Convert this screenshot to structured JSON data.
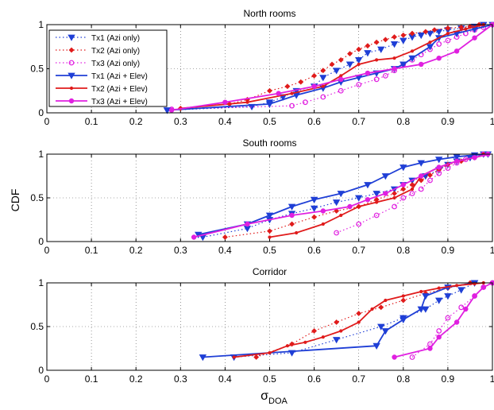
{
  "figure": {
    "shared_ylabel": "CDF",
    "shared_xlabel_main": "σ",
    "shared_xlabel_sub": "DOA"
  },
  "legend": {
    "placement": "top-left of first panel",
    "entries": [
      {
        "label": "Tx1 (Azi only)",
        "color": "#1f3fd6",
        "dash": "dotted",
        "marker": "triangle-down"
      },
      {
        "label": "Tx2 (Azi only)",
        "color": "#e01b1b",
        "dash": "dotted",
        "marker": "diamond"
      },
      {
        "label": "Tx3 (Azi only)",
        "color": "#e020e0",
        "dash": "dotted",
        "marker": "circle-open"
      },
      {
        "label": "Tx1 (Azi + Elev)",
        "color": "#1f3fd6",
        "dash": "solid",
        "marker": "triangle-down"
      },
      {
        "label": "Tx2 (Azi + Elev)",
        "color": "#e01b1b",
        "dash": "solid",
        "marker": "dot"
      },
      {
        "label": "Tx3 (Azi + Elev)",
        "color": "#e020e0",
        "dash": "solid",
        "marker": "circle-filled"
      }
    ]
  },
  "chart_data": [
    {
      "type": "line",
      "title": "North rooms",
      "xlabel": "",
      "ylabel": "",
      "xlim": [
        0,
        1
      ],
      "ylim": [
        0,
        1
      ],
      "xticks": [
        "0",
        "0.1",
        "0.2",
        "0.3",
        "0.4",
        "0.5",
        "0.6",
        "0.7",
        "0.8",
        "0.9",
        "1"
      ],
      "yticks": [
        "0",
        "0.5",
        "1"
      ],
      "grid": true,
      "series": [
        {
          "name": "Tx1 (Azi only)",
          "x": [
            0.27,
            0.46,
            0.5,
            0.53,
            0.56,
            0.6,
            0.62,
            0.65,
            0.68,
            0.7,
            0.72,
            0.75,
            0.78,
            0.8,
            0.82,
            0.84,
            0.86,
            0.88,
            0.9,
            0.93,
            0.96,
            0.98
          ],
          "y": [
            0.03,
            0.07,
            0.12,
            0.18,
            0.25,
            0.3,
            0.4,
            0.48,
            0.55,
            0.6,
            0.68,
            0.72,
            0.78,
            0.82,
            0.86,
            0.88,
            0.9,
            0.92,
            0.94,
            0.96,
            0.98,
            1.0
          ]
        },
        {
          "name": "Tx2 (Azi only)",
          "x": [
            0.3,
            0.41,
            0.45,
            0.5,
            0.54,
            0.57,
            0.6,
            0.62,
            0.64,
            0.66,
            0.68,
            0.7,
            0.72,
            0.74,
            0.76,
            0.78,
            0.8,
            0.82,
            0.85,
            0.87,
            0.9,
            0.93,
            0.95,
            0.97
          ],
          "y": [
            0.05,
            0.1,
            0.15,
            0.25,
            0.3,
            0.35,
            0.42,
            0.48,
            0.55,
            0.6,
            0.67,
            0.72,
            0.76,
            0.8,
            0.83,
            0.86,
            0.88,
            0.9,
            0.92,
            0.94,
            0.96,
            0.97,
            0.98,
            1.0
          ]
        },
        {
          "name": "Tx3 (Azi only)",
          "x": [
            0.28,
            0.55,
            0.58,
            0.62,
            0.66,
            0.7,
            0.74,
            0.76,
            0.78,
            0.8,
            0.82,
            0.84,
            0.86,
            0.88,
            0.9,
            0.92,
            0.94,
            0.96,
            0.98,
            1.0
          ],
          "y": [
            0.04,
            0.08,
            0.12,
            0.18,
            0.25,
            0.32,
            0.38,
            0.42,
            0.48,
            0.55,
            0.6,
            0.66,
            0.72,
            0.78,
            0.82,
            0.86,
            0.9,
            0.94,
            0.97,
            1.0
          ]
        },
        {
          "name": "Tx1 (Azi + Elev)",
          "x": [
            0.27,
            0.5,
            0.56,
            0.62,
            0.66,
            0.7,
            0.74,
            0.78,
            0.8,
            0.82,
            0.86,
            0.88,
            0.92,
            0.96,
            1.0
          ],
          "y": [
            0.03,
            0.1,
            0.2,
            0.28,
            0.35,
            0.4,
            0.45,
            0.5,
            0.55,
            0.62,
            0.75,
            0.85,
            0.9,
            0.95,
            1.0
          ]
        },
        {
          "name": "Tx2 (Azi + Elev)",
          "x": [
            0.3,
            0.45,
            0.55,
            0.62,
            0.66,
            0.7,
            0.74,
            0.78,
            0.82,
            0.86,
            0.9,
            0.94,
            0.98
          ],
          "y": [
            0.05,
            0.12,
            0.22,
            0.3,
            0.42,
            0.55,
            0.6,
            0.62,
            0.7,
            0.8,
            0.9,
            0.95,
            1.0
          ]
        },
        {
          "name": "Tx3 (Azi + Elev)",
          "x": [
            0.28,
            0.4,
            0.52,
            0.6,
            0.66,
            0.72,
            0.78,
            0.84,
            0.88,
            0.92,
            0.96,
            1.0
          ],
          "y": [
            0.03,
            0.12,
            0.22,
            0.3,
            0.38,
            0.45,
            0.5,
            0.55,
            0.62,
            0.7,
            0.85,
            1.0
          ]
        }
      ]
    },
    {
      "type": "line",
      "title": "South rooms",
      "xlabel": "",
      "ylabel": "",
      "xlim": [
        0,
        1
      ],
      "ylim": [
        0,
        1
      ],
      "xticks": [
        "0",
        "0.1",
        "0.2",
        "0.3",
        "0.4",
        "0.5",
        "0.6",
        "0.7",
        "0.8",
        "0.9",
        "1"
      ],
      "yticks": [
        "0",
        "0.5",
        "1"
      ],
      "grid": true,
      "series": [
        {
          "name": "Tx1 (Azi only)",
          "x": [
            0.35,
            0.45,
            0.5,
            0.55,
            0.6,
            0.65,
            0.7,
            0.74,
            0.78,
            0.8,
            0.82,
            0.85,
            0.88,
            0.9,
            0.92,
            0.95,
            0.98
          ],
          "y": [
            0.05,
            0.15,
            0.25,
            0.32,
            0.38,
            0.45,
            0.5,
            0.55,
            0.6,
            0.65,
            0.7,
            0.75,
            0.82,
            0.88,
            0.92,
            0.96,
            1.0
          ]
        },
        {
          "name": "Tx2 (Azi only)",
          "x": [
            0.4,
            0.5,
            0.55,
            0.6,
            0.65,
            0.7,
            0.74,
            0.78,
            0.8,
            0.82,
            0.84,
            0.86,
            0.88,
            0.9,
            0.93,
            0.96,
            0.98
          ],
          "y": [
            0.05,
            0.12,
            0.2,
            0.28,
            0.35,
            0.4,
            0.48,
            0.55,
            0.6,
            0.65,
            0.7,
            0.76,
            0.82,
            0.88,
            0.92,
            0.96,
            1.0
          ]
        },
        {
          "name": "Tx3 (Azi only)",
          "x": [
            0.65,
            0.7,
            0.74,
            0.78,
            0.8,
            0.82,
            0.84,
            0.86,
            0.88,
            0.9,
            0.92,
            0.94,
            0.96,
            0.98
          ],
          "y": [
            0.1,
            0.2,
            0.3,
            0.4,
            0.5,
            0.55,
            0.6,
            0.7,
            0.78,
            0.84,
            0.9,
            0.94,
            0.97,
            1.0
          ]
        },
        {
          "name": "Tx1 (Azi + Elev)",
          "x": [
            0.34,
            0.45,
            0.5,
            0.55,
            0.6,
            0.66,
            0.72,
            0.76,
            0.8,
            0.84,
            0.88,
            0.92,
            0.96,
            0.99
          ],
          "y": [
            0.08,
            0.2,
            0.3,
            0.4,
            0.48,
            0.55,
            0.65,
            0.75,
            0.85,
            0.9,
            0.94,
            0.97,
            0.99,
            1.0
          ]
        },
        {
          "name": "Tx2 (Azi + Elev)",
          "x": [
            0.5,
            0.56,
            0.62,
            0.66,
            0.7,
            0.74,
            0.78,
            0.82,
            0.84,
            0.88,
            0.92,
            0.96,
            0.99
          ],
          "y": [
            0.05,
            0.1,
            0.2,
            0.3,
            0.4,
            0.45,
            0.5,
            0.6,
            0.75,
            0.85,
            0.92,
            0.96,
            1.0
          ]
        },
        {
          "name": "Tx3 (Azi + Elev)",
          "x": [
            0.33,
            0.45,
            0.55,
            0.62,
            0.68,
            0.72,
            0.76,
            0.8,
            0.84,
            0.88,
            0.92,
            0.96,
            0.99
          ],
          "y": [
            0.05,
            0.2,
            0.3,
            0.35,
            0.4,
            0.48,
            0.55,
            0.65,
            0.75,
            0.85,
            0.92,
            0.96,
            1.0
          ]
        }
      ]
    },
    {
      "type": "line",
      "title": "Corridor",
      "xlabel": "",
      "ylabel": "",
      "xlim": [
        0,
        1
      ],
      "ylim": [
        0,
        1
      ],
      "xticks": [
        "0",
        "0.1",
        "0.2",
        "0.3",
        "0.4",
        "0.5",
        "0.6",
        "0.7",
        "0.8",
        "0.9",
        "1"
      ],
      "yticks": [
        "0",
        "0.5",
        "1"
      ],
      "grid": true,
      "series": [
        {
          "name": "Tx1 (Azi only)",
          "x": [
            0.42,
            0.55,
            0.65,
            0.75,
            0.8,
            0.85,
            0.88,
            0.9,
            0.93,
            0.96
          ],
          "y": [
            0.15,
            0.2,
            0.35,
            0.5,
            0.6,
            0.7,
            0.8,
            0.85,
            0.92,
            1.0
          ]
        },
        {
          "name": "Tx2 (Azi only)",
          "x": [
            0.47,
            0.55,
            0.6,
            0.65,
            0.7,
            0.75,
            0.8,
            0.85,
            0.9,
            0.95
          ],
          "y": [
            0.15,
            0.3,
            0.45,
            0.55,
            0.65,
            0.72,
            0.8,
            0.88,
            0.94,
            1.0
          ]
        },
        {
          "name": "Tx3 (Azi only)",
          "x": [
            0.82,
            0.86,
            0.88,
            0.9,
            0.93,
            0.96,
            0.98,
            1.0
          ],
          "y": [
            0.15,
            0.3,
            0.45,
            0.6,
            0.72,
            0.85,
            0.95,
            1.0
          ]
        },
        {
          "name": "Tx1 (Azi + Elev)",
          "x": [
            0.35,
            0.74,
            0.76,
            0.8,
            0.84,
            0.85,
            0.9,
            0.96
          ],
          "y": [
            0.15,
            0.28,
            0.45,
            0.58,
            0.7,
            0.85,
            0.95,
            1.0
          ]
        },
        {
          "name": "Tx2 (Azi + Elev)",
          "x": [
            0.42,
            0.5,
            0.54,
            0.58,
            0.62,
            0.66,
            0.7,
            0.73,
            0.76,
            0.8,
            0.84,
            0.88,
            0.92,
            0.96,
            0.98
          ],
          "y": [
            0.15,
            0.2,
            0.28,
            0.32,
            0.38,
            0.45,
            0.55,
            0.7,
            0.8,
            0.85,
            0.9,
            0.94,
            0.97,
            0.99,
            1.0
          ]
        },
        {
          "name": "Tx3 (Azi + Elev)",
          "x": [
            0.78,
            0.86,
            0.88,
            0.92,
            0.94,
            0.96,
            0.98,
            1.0
          ],
          "y": [
            0.15,
            0.25,
            0.38,
            0.55,
            0.7,
            0.85,
            0.95,
            1.0
          ]
        }
      ]
    }
  ]
}
